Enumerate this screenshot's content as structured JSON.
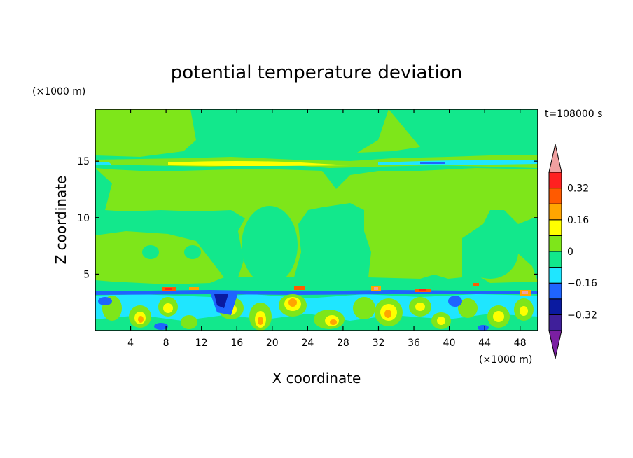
{
  "chart_data": {
    "type": "heatmap",
    "title": "potential temperature deviation",
    "xlabel": "X coordinate",
    "ylabel": "Z coordinate",
    "x_unit": "(×1000 m)",
    "y_unit": "(×1000 m)",
    "time_label": "t=108000 s",
    "xlim": [
      0,
      50
    ],
    "ylim": [
      0,
      19.6
    ],
    "xticks": [
      4,
      8,
      12,
      16,
      20,
      24,
      28,
      32,
      36,
      40,
      44,
      48
    ],
    "yticks": [
      5,
      10,
      15
    ],
    "colorbar": {
      "levels": [
        -0.4,
        -0.32,
        -0.24,
        -0.16,
        -0.08,
        0,
        0.08,
        0.16,
        0.24,
        0.32,
        0.4
      ],
      "labels": [
        "0.32",
        "0.16",
        "0",
        "−0.16",
        "−0.32"
      ],
      "label_values": [
        0.32,
        0.16,
        0,
        -0.16,
        -0.32
      ],
      "colors": [
        "#7a1fa2",
        "#3f1f9a",
        "#0a1aa0",
        "#1f64ff",
        "#1fe6ff",
        "#12e88c",
        "#7ee61a",
        "#ffff00",
        "#ffa500",
        "#ff5a00",
        "#ff2020",
        "#f0a0a0"
      ],
      "extend": "both"
    },
    "grid": false
  }
}
